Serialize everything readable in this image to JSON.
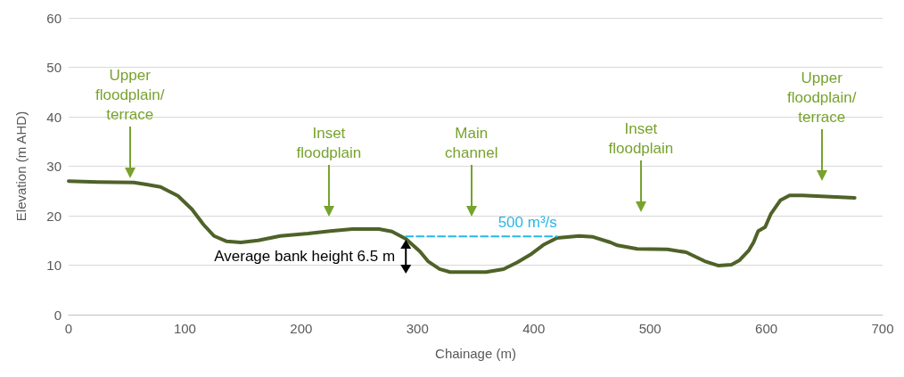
{
  "chart_data": {
    "type": "line",
    "xlabel": "Chainage (m)",
    "ylabel": "Elevation (m AHD)",
    "xlim": [
      0,
      700
    ],
    "xticks": [
      0,
      100,
      200,
      300,
      400,
      500,
      600,
      700
    ],
    "ylim": [
      0,
      60
    ],
    "yticks": [
      0,
      10,
      20,
      30,
      40,
      50,
      60
    ],
    "grid": "y",
    "legend": false,
    "marker": "none",
    "series": [
      {
        "color": "#4f6228",
        "line_style": "solid",
        "x": [
          0,
          25,
          56,
          67,
          79,
          94,
          106,
          116,
          125,
          136,
          148,
          163,
          182,
          206,
          225,
          244,
          267,
          278,
          290,
          302,
          309,
          319,
          328,
          359,
          374,
          386,
          397,
          409,
          420,
          439,
          451,
          466,
          472,
          489,
          515,
          531,
          547,
          559,
          570,
          577,
          585,
          589,
          593,
          599,
          604,
          612,
          620,
          631,
          676
        ],
        "values": [
          27.0,
          26.8,
          26.7,
          26.3,
          25.8,
          24.0,
          21.3,
          18.2,
          15.9,
          14.8,
          14.6,
          15.0,
          15.9,
          16.4,
          16.9,
          17.3,
          17.3,
          16.8,
          15.3,
          12.8,
          10.8,
          9.2,
          8.6,
          8.6,
          9.2,
          10.6,
          12.1,
          14.2,
          15.5,
          15.9,
          15.7,
          14.6,
          14.0,
          13.3,
          13.2,
          12.6,
          10.8,
          9.9,
          10.1,
          11.0,
          13.0,
          14.6,
          16.9,
          17.7,
          20.4,
          23.1,
          24.1,
          24.1,
          23.6
        ]
      },
      {
        "name": "500 m³/s",
        "color": "#29b6e8",
        "line_style": "dashed",
        "x": [
          290,
          420
        ],
        "values": [
          15.8,
          15.8
        ]
      }
    ],
    "annotations": [
      "Upper\nfloodplain/\nterrace",
      "Inset\nfloodplain",
      "Main\nchannel",
      "Inset\nfloodplain",
      "Upper\nfloodplain/\nterrace",
      {
        "text": "Average bank height 6.5 m",
        "x": 290,
        "y": 15.3
      }
    ]
  }
}
